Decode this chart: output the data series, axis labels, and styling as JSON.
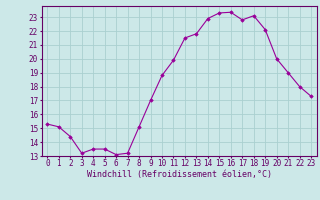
{
  "x": [
    0,
    1,
    2,
    3,
    4,
    5,
    6,
    7,
    8,
    9,
    10,
    11,
    12,
    13,
    14,
    15,
    16,
    17,
    18,
    19,
    20,
    21,
    22,
    23
  ],
  "y": [
    15.3,
    15.1,
    14.4,
    13.2,
    13.5,
    13.5,
    13.1,
    13.2,
    15.1,
    17.0,
    18.8,
    19.9,
    21.5,
    21.8,
    22.9,
    23.3,
    23.35,
    22.8,
    23.1,
    22.1,
    20.0,
    19.0,
    18.0,
    17.3
  ],
  "line_color": "#990099",
  "marker": "D",
  "marker_size": 1.8,
  "bg_color": "#cce8e8",
  "grid_color": "#aad0d0",
  "xlabel": "Windchill (Refroidissement éolien,°C)",
  "ylim": [
    13,
    23.8
  ],
  "xlim": [
    -0.5,
    23.5
  ],
  "yticks": [
    13,
    14,
    15,
    16,
    17,
    18,
    19,
    20,
    21,
    22,
    23
  ],
  "xticks": [
    0,
    1,
    2,
    3,
    4,
    5,
    6,
    7,
    8,
    9,
    10,
    11,
    12,
    13,
    14,
    15,
    16,
    17,
    18,
    19,
    20,
    21,
    22,
    23
  ],
  "tick_color": "#660066",
  "axis_color": "#660066",
  "label_fontsize": 6.0,
  "tick_fontsize": 5.5,
  "linewidth": 0.8
}
